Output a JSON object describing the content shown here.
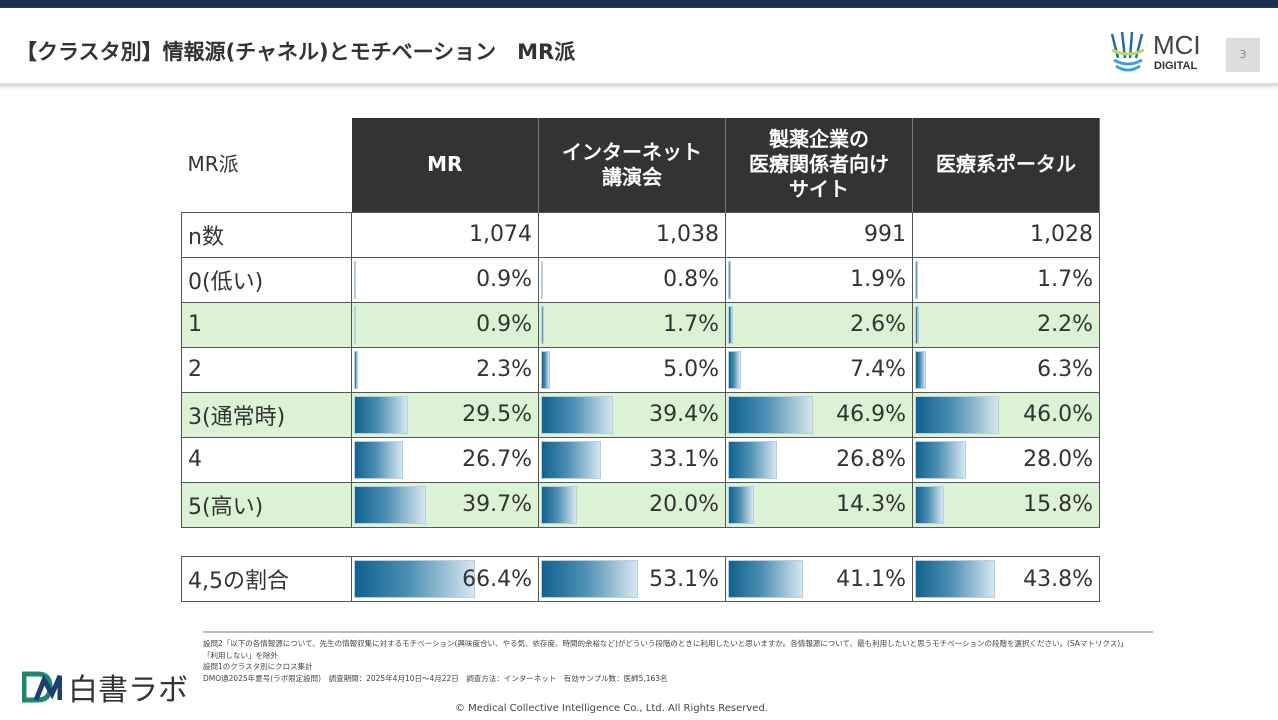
{
  "header": {
    "title": "【クラスタ別】情報源(チャネル)とモチベーション　MR派",
    "logo_text": "MCI",
    "logo_sub": "DIGITAL",
    "page_number": "3"
  },
  "table": {
    "corner_label": "MR派",
    "columns": [
      "MR",
      "インターネット\n講演会",
      "製薬企業の\n医療関係者向け\nサイト",
      "医療系ポータル"
    ],
    "rows": [
      {
        "label": "n数",
        "values": [
          "1,074",
          "1,038",
          "991",
          "1,028"
        ],
        "bars": null,
        "green": false
      },
      {
        "label": "0(低い)",
        "values": [
          "0.9%",
          "0.8%",
          "1.9%",
          "1.7%"
        ],
        "bars": [
          0.9,
          0.8,
          1.9,
          1.7
        ],
        "green": false
      },
      {
        "label": "1",
        "values": [
          "0.9%",
          "1.7%",
          "2.6%",
          "2.2%"
        ],
        "bars": [
          0.9,
          1.7,
          2.6,
          2.2
        ],
        "green": true
      },
      {
        "label": "2",
        "values": [
          "2.3%",
          "5.0%",
          "7.4%",
          "6.3%"
        ],
        "bars": [
          2.3,
          5.0,
          7.4,
          6.3
        ],
        "green": false
      },
      {
        "label": "3(通常時)",
        "values": [
          "29.5%",
          "39.4%",
          "46.9%",
          "46.0%"
        ],
        "bars": [
          29.5,
          39.4,
          46.9,
          46.0
        ],
        "green": true
      },
      {
        "label": "4",
        "values": [
          "26.7%",
          "33.1%",
          "26.8%",
          "28.0%"
        ],
        "bars": [
          26.7,
          33.1,
          26.8,
          28.0
        ],
        "green": false
      },
      {
        "label": "5(高い)",
        "values": [
          "39.7%",
          "20.0%",
          "14.3%",
          "15.8%"
        ],
        "bars": [
          39.7,
          20.0,
          14.3,
          15.8
        ],
        "green": true
      }
    ],
    "summary": {
      "label": "4,5の割合",
      "values": [
        "66.4%",
        "53.1%",
        "41.1%",
        "43.8%"
      ],
      "bars": [
        66.4,
        53.1,
        41.1,
        43.8
      ]
    },
    "bar_color": "#10628f",
    "green_row_color": "#dcf2d4",
    "header_color": "#333333"
  },
  "footer": {
    "notes": [
      "設問2「以下の各情報源について、先生の情報収集に対するモチベーション(興味度合い、やる気、依存度、時間的余裕など)がどういう段階のときに利用したいと思いますか。各情報源について、最も利用したいと思うモチベーションの段階を選択ください。(SAマトリクス)」",
      "「利用しない」を除外",
      "設問1のクラスタ別にクロス集計",
      "DMO通2025年夏号(ラボ限定設問)　調査期間：2025年4月10日～4月22日　調査方法：インターネット　有効サンプル数：医師5,163名"
    ],
    "copyright": "© Medical Collective Intelligence Co., Ltd.  All Rights Reserved.",
    "brand": "白書ラボ"
  }
}
